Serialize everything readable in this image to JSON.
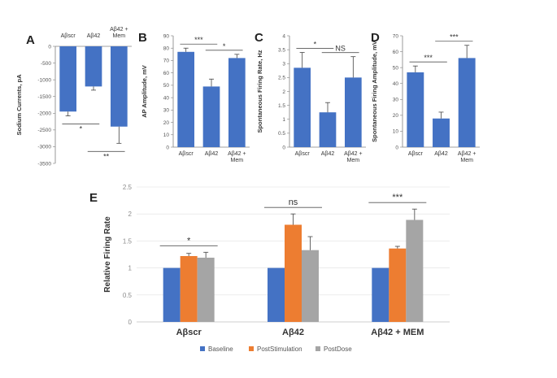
{
  "colors": {
    "bar_blue": "#4472c4",
    "bar_orange": "#ed7d31",
    "bar_gray": "#a5a5a5",
    "axis": "#808080",
    "grid": "#e0e0e0",
    "error": "#444444"
  },
  "chart_data": [
    {
      "panel": "A",
      "type": "bar",
      "ylabel": "Sodium Currents, pA",
      "categories": [
        "Aβscr",
        "Aβ42",
        "Aβ42 + Mem"
      ],
      "category_lines": [
        [
          "Aβscr"
        ],
        [
          "Aβ42"
        ],
        [
          "Aβ42 +",
          "Mem"
        ]
      ],
      "values": [
        -1950,
        -1200,
        -2400
      ],
      "errors": [
        130,
        110,
        500
      ],
      "ylim": [
        -3500,
        0
      ],
      "yticks": [
        0,
        -500,
        -1000,
        -1500,
        -2000,
        -2500,
        -3000,
        -3500
      ],
      "ytick_labels": [
        "0",
        "-500",
        "-1000",
        "-1500",
        "-2000",
        "-2500",
        "-3000",
        "-3500"
      ],
      "significance": [
        {
          "from": 0,
          "to": 1,
          "label": "*"
        },
        {
          "from": 1,
          "to": 2,
          "label": "**"
        }
      ]
    },
    {
      "panel": "B",
      "type": "bar",
      "ylabel": "AP Amplitude, mV",
      "categories": [
        "Aβscr",
        "Aβ42",
        "Aβ42 + Mem"
      ],
      "category_lines": [
        [
          "Aβscr"
        ],
        [
          "Aβ42"
        ],
        [
          "Aβ42 +",
          "Mem"
        ]
      ],
      "values": [
        77,
        49,
        72
      ],
      "errors": [
        3,
        6,
        3
      ],
      "ylim": [
        0,
        90
      ],
      "yticks": [
        0,
        10,
        20,
        30,
        40,
        50,
        60,
        70,
        80,
        90
      ],
      "ytick_labels": [
        "0",
        "10",
        "20",
        "30",
        "40",
        "50",
        "60",
        "70",
        "80",
        "90"
      ],
      "significance": [
        {
          "from": 0,
          "to": 1,
          "label": "***"
        },
        {
          "from": 1,
          "to": 2,
          "label": "*"
        }
      ]
    },
    {
      "panel": "C",
      "type": "bar",
      "ylabel": "Spontaneous Firing Rate, Hz",
      "categories": [
        "Aβscr",
        "Aβ42",
        "Aβ42 + Mem"
      ],
      "category_lines": [
        [
          "Aβscr"
        ],
        [
          "Aβ42"
        ],
        [
          "Aβ42 +",
          "Mem"
        ]
      ],
      "values": [
        2.85,
        1.25,
        2.5
      ],
      "errors": [
        0.55,
        0.35,
        0.75
      ],
      "ylim": [
        0,
        4
      ],
      "yticks": [
        0,
        0.5,
        1,
        1.5,
        2,
        2.5,
        3,
        3.5,
        4
      ],
      "ytick_labels": [
        "0",
        "0.5",
        "1",
        "1.5",
        "2",
        "2.5",
        "3",
        "3.5",
        "4"
      ],
      "significance": [
        {
          "from": 0,
          "to": 1,
          "label": "*"
        },
        {
          "from": 1,
          "to": 2,
          "label": "NS"
        }
      ]
    },
    {
      "panel": "D",
      "type": "bar",
      "ylabel": "Spontaneous Firing Amplitude, mV",
      "categories": [
        "Aβscr",
        "Aβ42",
        "Aβ42 + Mem"
      ],
      "category_lines": [
        [
          "Aβscr"
        ],
        [
          "Aβ42"
        ],
        [
          "Aβ42 +",
          "Mem"
        ]
      ],
      "values": [
        47,
        18,
        56
      ],
      "errors": [
        4,
        4,
        8
      ],
      "ylim": [
        0,
        70
      ],
      "yticks": [
        0,
        10,
        20,
        30,
        40,
        50,
        60,
        70
      ],
      "ytick_labels": [
        "0",
        "10",
        "20",
        "30",
        "40",
        "50",
        "60",
        "70"
      ],
      "significance": [
        {
          "from": 0,
          "to": 1,
          "label": "***"
        },
        {
          "from": 1,
          "to": 2,
          "label": "***"
        }
      ]
    },
    {
      "panel": "E",
      "type": "bar",
      "ylabel": "Relative Firing Rate",
      "categories": [
        "Aβscr",
        "Aβ42",
        "Aβ42 + MEM"
      ],
      "series": [
        {
          "name": "Baseline",
          "color": "#4472c4",
          "values": [
            1,
            1,
            1
          ],
          "errors": [
            0,
            0,
            0
          ]
        },
        {
          "name": "PostStimulation",
          "color": "#ed7d31",
          "values": [
            1.22,
            1.8,
            1.36
          ],
          "errors": [
            0.05,
            0.2,
            0.04
          ]
        },
        {
          "name": "PostDose",
          "color": "#a5a5a5",
          "values": [
            1.19,
            1.33,
            1.89
          ],
          "errors": [
            0.1,
            0.25,
            0.2
          ]
        }
      ],
      "ylim": [
        0,
        2.5
      ],
      "yticks": [
        0,
        0.5,
        1,
        1.5,
        2,
        2.5
      ],
      "ytick_labels": [
        "0",
        "0.5",
        "1",
        "1.5",
        "2",
        "2.5"
      ],
      "grid": true,
      "legend": "bottom",
      "significance": [
        {
          "group": 0,
          "label": "*"
        },
        {
          "group": 1,
          "label": "ns"
        },
        {
          "group": 2,
          "label": "***"
        }
      ]
    }
  ]
}
